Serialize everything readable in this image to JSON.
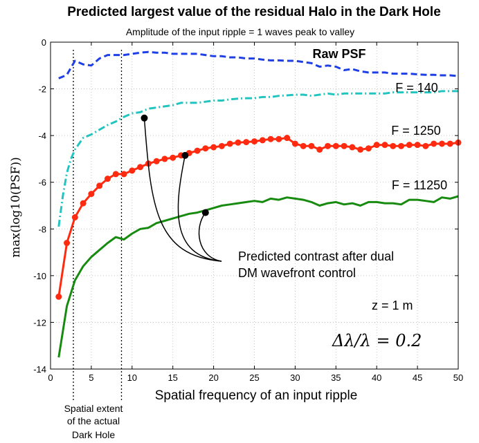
{
  "chart_data": {
    "type": "line",
    "title": "Predicted largest value of the residual Halo in the Dark Hole",
    "subtitle": "Amplitude of the input ripple = 1 waves peak to valley",
    "xlabel": "Spatial frequency of an input ripple",
    "ylabel": "max(log10(PSF))",
    "xlim": [
      0,
      50
    ],
    "ylim": [
      -14,
      0
    ],
    "xticks": [
      0,
      5,
      10,
      15,
      20,
      25,
      30,
      35,
      40,
      45,
      50
    ],
    "yticks": [
      0,
      -2,
      -4,
      -6,
      -8,
      -10,
      -12,
      -14
    ],
    "grid": true,
    "series": [
      {
        "name": "Raw PSF",
        "color": "#1f3fe6",
        "style": "dashed",
        "x": [
          1,
          2,
          3,
          4,
          5,
          6,
          7,
          8,
          9,
          10,
          11,
          12,
          13,
          14,
          15,
          16,
          17,
          18,
          19,
          20,
          21,
          22,
          23,
          24,
          25,
          26,
          27,
          28,
          29,
          30,
          31,
          32,
          33,
          34,
          35,
          36,
          37,
          38,
          39,
          40,
          41,
          42,
          43,
          44,
          45,
          46,
          47,
          48,
          49,
          50
        ],
        "y": [
          -1.55,
          -1.4,
          -0.8,
          -0.95,
          -1.0,
          -0.7,
          -0.55,
          -0.55,
          -0.55,
          -0.5,
          -0.45,
          -0.42,
          -0.45,
          -0.45,
          -0.5,
          -0.5,
          -0.5,
          -0.5,
          -0.55,
          -0.6,
          -0.6,
          -0.65,
          -0.65,
          -0.7,
          -0.7,
          -0.75,
          -0.78,
          -0.78,
          -0.8,
          -0.8,
          -0.85,
          -0.9,
          -1.05,
          -1.0,
          -1.05,
          -1.2,
          -1.15,
          -1.25,
          -1.3,
          -1.3,
          -1.3,
          -1.35,
          -1.35,
          -1.35,
          -1.38,
          -1.4,
          -1.4,
          -1.42,
          -1.42,
          -1.45
        ]
      },
      {
        "name": "F = 140",
        "color": "#22c4c0",
        "style": "dashdot",
        "x": [
          1,
          1.5,
          2,
          2.5,
          3,
          4,
          5,
          6,
          7,
          8,
          9,
          10,
          11,
          12,
          13,
          14,
          15,
          16,
          17,
          18,
          19,
          20,
          21,
          22,
          23,
          24,
          25,
          26,
          27,
          28,
          29,
          30,
          31,
          32,
          33,
          34,
          35,
          36,
          37,
          38,
          39,
          40,
          41,
          42,
          43,
          44,
          45,
          46,
          47,
          48,
          49,
          50
        ],
        "y": [
          -7.9,
          -6.6,
          -5.6,
          -5.0,
          -4.6,
          -4.1,
          -3.95,
          -3.75,
          -3.55,
          -3.4,
          -3.2,
          -3.05,
          -3.0,
          -2.85,
          -2.8,
          -2.75,
          -2.7,
          -2.6,
          -2.6,
          -2.6,
          -2.55,
          -2.5,
          -2.5,
          -2.45,
          -2.42,
          -2.4,
          -2.4,
          -2.35,
          -2.35,
          -2.3,
          -2.28,
          -2.25,
          -2.25,
          -2.3,
          -2.25,
          -2.2,
          -2.25,
          -2.2,
          -2.2,
          -2.2,
          -2.2,
          -2.2,
          -2.2,
          -2.15,
          -2.15,
          -2.15,
          -2.15,
          -2.15,
          -2.15,
          -2.1,
          -2.1,
          -2.1
        ]
      },
      {
        "name": "F = 1250",
        "color": "#ff2a10",
        "style": "solid-markers",
        "x": [
          1,
          2,
          3,
          4,
          5,
          6,
          7,
          8,
          9,
          10,
          11,
          12,
          13,
          14,
          15,
          16,
          17,
          18,
          19,
          20,
          21,
          22,
          23,
          24,
          25,
          26,
          27,
          28,
          29,
          30,
          31,
          32,
          33,
          34,
          35,
          36,
          37,
          38,
          39,
          40,
          41,
          42,
          43,
          44,
          45,
          46,
          47,
          48,
          49,
          50
        ],
        "y": [
          -10.9,
          -8.6,
          -7.5,
          -6.9,
          -6.5,
          -6.15,
          -5.85,
          -5.65,
          -5.65,
          -5.5,
          -5.35,
          -5.2,
          -5.1,
          -5.0,
          -4.95,
          -4.85,
          -4.75,
          -4.65,
          -4.55,
          -4.5,
          -4.45,
          -4.35,
          -4.3,
          -4.28,
          -4.25,
          -4.2,
          -4.15,
          -4.15,
          -4.1,
          -4.35,
          -4.45,
          -4.45,
          -4.6,
          -4.45,
          -4.45,
          -4.45,
          -4.5,
          -4.6,
          -4.55,
          -4.4,
          -4.4,
          -4.45,
          -4.45,
          -4.4,
          -4.4,
          -4.45,
          -4.35,
          -4.35,
          -4.35,
          -4.3
        ]
      },
      {
        "name": "F = 11250",
        "color": "#178a10",
        "style": "solid",
        "x": [
          1,
          2,
          3,
          4,
          5,
          6,
          7,
          8,
          9,
          10,
          11,
          12,
          13,
          14,
          15,
          16,
          17,
          18,
          19,
          20,
          21,
          22,
          23,
          24,
          25,
          26,
          27,
          28,
          29,
          30,
          31,
          32,
          33,
          34,
          35,
          36,
          37,
          38,
          39,
          40,
          41,
          42,
          43,
          44,
          45,
          46,
          47,
          48,
          49,
          50
        ],
        "y": [
          -13.5,
          -11.3,
          -10.2,
          -9.6,
          -9.2,
          -8.9,
          -8.6,
          -8.35,
          -8.45,
          -8.2,
          -8.0,
          -7.95,
          -7.75,
          -7.65,
          -7.55,
          -7.45,
          -7.35,
          -7.3,
          -7.2,
          -7.1,
          -7.0,
          -6.95,
          -6.9,
          -6.85,
          -6.8,
          -6.85,
          -6.7,
          -6.75,
          -6.65,
          -6.7,
          -6.75,
          -6.85,
          -7.0,
          -6.9,
          -6.85,
          -6.95,
          -6.9,
          -7.0,
          -6.85,
          -6.85,
          -6.9,
          -6.9,
          -6.95,
          -6.75,
          -6.75,
          -6.8,
          -6.85,
          -6.65,
          -6.7,
          -6.6
        ]
      }
    ],
    "annotations": {
      "raw_label": "Raw PSF",
      "f140_label": "F = 140",
      "f1250_label": "F = 1250",
      "f11250_label": "F = 11250",
      "contrast_line1": "Predicted contrast after dual",
      "contrast_line2": "DM wavefront control",
      "z_label": "z = 1 m",
      "dl_label": "Δλ/λ = 0.2",
      "extent_line1": "Spatial extent",
      "extent_line2": "of the actual",
      "extent_line3": "Dark Hole",
      "vline_x": [
        2.8,
        8.7
      ],
      "contrast_points": [
        [
          11.5,
          -3.25
        ],
        [
          16.5,
          -4.85
        ],
        [
          19.0,
          -7.3
        ]
      ]
    }
  }
}
